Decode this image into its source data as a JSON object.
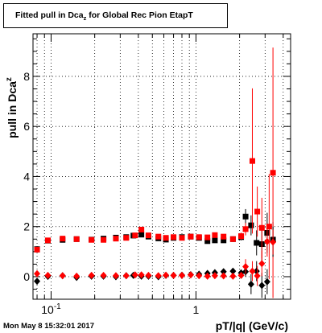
{
  "title": {
    "prefix": "Fitted pull in Dca",
    "subscript": "z",
    "suffix": " for Global Rec Pion EtapT"
  },
  "timestamp": "Mon May  8 15:32:01 2017",
  "chart_data": {
    "type": "scatter",
    "title": "Fitted pull in Dcaz for Global Rec Pion EtapT",
    "xlabel": "pT/|q| (GeV/c)",
    "ylabel": "pull in Dcaz",
    "xscale": "log",
    "xlim": [
      0.075,
      4.5
    ],
    "ylim": [
      -0.9,
      9.7
    ],
    "x_tick_labels": [
      "10^-1",
      "1"
    ],
    "y_tick_labels": [
      "0",
      "2",
      "4",
      "6",
      "8"
    ],
    "y_ticks": [
      0,
      2,
      4,
      6,
      8
    ],
    "grid": true,
    "colors": {
      "black": "#000000",
      "red": "#ff0000"
    },
    "series": [
      {
        "color": "#000000",
        "marker": "square",
        "points": [
          [
            0.08,
            1.1,
            0.1
          ],
          [
            0.095,
            1.44,
            0.05
          ],
          [
            0.12,
            1.47,
            0.04
          ],
          [
            0.15,
            1.5,
            0.04
          ],
          [
            0.19,
            1.48,
            0.04
          ],
          [
            0.23,
            1.52,
            0.04
          ],
          [
            0.28,
            1.56,
            0.05
          ],
          [
            0.33,
            1.58,
            0.05
          ],
          [
            0.37,
            1.64,
            0.06
          ],
          [
            0.42,
            1.68,
            0.06
          ],
          [
            0.47,
            1.6,
            0.06
          ],
          [
            0.55,
            1.53,
            0.06
          ],
          [
            0.62,
            1.48,
            0.07
          ],
          [
            0.7,
            1.55,
            0.07
          ],
          [
            0.8,
            1.58,
            0.07
          ],
          [
            0.92,
            1.6,
            0.07
          ],
          [
            1.05,
            1.55,
            0.08
          ],
          [
            1.2,
            1.42,
            0.08
          ],
          [
            1.35,
            1.45,
            0.09
          ],
          [
            1.55,
            1.45,
            0.1
          ],
          [
            1.8,
            1.5,
            0.11
          ],
          [
            2.05,
            1.58,
            0.13
          ],
          [
            2.2,
            2.4,
            0.3
          ],
          [
            2.4,
            2.05,
            0.4
          ],
          [
            2.62,
            1.35,
            0.5
          ],
          [
            2.85,
            1.3,
            0.7
          ],
          [
            3.1,
            1.75,
            0.8
          ],
          [
            3.4,
            1.48,
            0.7
          ]
        ]
      },
      {
        "color": "#ff0000",
        "marker": "square",
        "points": [
          [
            0.08,
            1.08,
            0.1
          ],
          [
            0.095,
            1.45,
            0.05
          ],
          [
            0.12,
            1.52,
            0.04
          ],
          [
            0.15,
            1.5,
            0.04
          ],
          [
            0.19,
            1.47,
            0.04
          ],
          [
            0.23,
            1.47,
            0.04
          ],
          [
            0.28,
            1.52,
            0.05
          ],
          [
            0.33,
            1.55,
            0.05
          ],
          [
            0.38,
            1.65,
            0.06
          ],
          [
            0.42,
            1.88,
            0.06
          ],
          [
            0.47,
            1.65,
            0.06
          ],
          [
            0.55,
            1.6,
            0.06
          ],
          [
            0.62,
            1.55,
            0.07
          ],
          [
            0.7,
            1.58,
            0.07
          ],
          [
            0.8,
            1.55,
            0.07
          ],
          [
            0.92,
            1.6,
            0.07
          ],
          [
            1.05,
            1.58,
            0.08
          ],
          [
            1.2,
            1.57,
            0.08
          ],
          [
            1.35,
            1.66,
            0.09
          ],
          [
            1.55,
            1.6,
            0.1
          ],
          [
            1.8,
            1.5,
            0.11
          ],
          [
            2.05,
            1.62,
            0.14
          ],
          [
            2.2,
            1.9,
            0.25
          ],
          [
            2.45,
            4.62,
            2.9
          ],
          [
            2.65,
            2.6,
            1.0
          ],
          [
            2.85,
            1.95,
            1.2
          ],
          [
            3.2,
            2.0,
            2.1
          ],
          [
            3.4,
            4.15,
            5.0
          ]
        ]
      },
      {
        "color": "#000000",
        "marker": "diamond",
        "points": [
          [
            0.08,
            -0.18,
            0.05
          ],
          [
            0.095,
            0.01,
            0.03
          ],
          [
            0.12,
            0.04,
            0.03
          ],
          [
            0.15,
            -0.03,
            0.03
          ],
          [
            0.19,
            0.02,
            0.03
          ],
          [
            0.23,
            0.02,
            0.03
          ],
          [
            0.28,
            0.0,
            0.03
          ],
          [
            0.33,
            0.04,
            0.03
          ],
          [
            0.37,
            0.05,
            0.03
          ],
          [
            0.42,
            0.02,
            0.03
          ],
          [
            0.47,
            0.02,
            0.03
          ],
          [
            0.55,
            0.0,
            0.04
          ],
          [
            0.62,
            0.05,
            0.04
          ],
          [
            0.7,
            0.05,
            0.04
          ],
          [
            0.8,
            0.06,
            0.04
          ],
          [
            0.92,
            0.08,
            0.04
          ],
          [
            1.05,
            0.1,
            0.04
          ],
          [
            1.2,
            0.13,
            0.05
          ],
          [
            1.35,
            0.16,
            0.05
          ],
          [
            1.55,
            0.2,
            0.06
          ],
          [
            1.8,
            0.22,
            0.07
          ],
          [
            2.05,
            0.15,
            0.08
          ],
          [
            2.2,
            0.2,
            0.2
          ],
          [
            2.4,
            -0.3,
            0.4
          ],
          [
            2.62,
            0.22,
            0.4
          ],
          [
            2.85,
            -0.35,
            0.5
          ],
          [
            3.1,
            -0.2,
            0.5
          ],
          [
            3.4,
            1.4,
            0.6
          ]
        ]
      },
      {
        "color": "#ff0000",
        "marker": "diamond",
        "points": [
          [
            0.08,
            0.12,
            0.05
          ],
          [
            0.095,
            0.05,
            0.03
          ],
          [
            0.12,
            0.04,
            0.03
          ],
          [
            0.15,
            0.02,
            0.03
          ],
          [
            0.19,
            0.05,
            0.03
          ],
          [
            0.23,
            0.05,
            0.03
          ],
          [
            0.28,
            0.04,
            0.03
          ],
          [
            0.33,
            0.04,
            0.03
          ],
          [
            0.38,
            0.07,
            0.03
          ],
          [
            0.42,
            0.07,
            0.03
          ],
          [
            0.47,
            0.05,
            0.03
          ],
          [
            0.55,
            0.04,
            0.04
          ],
          [
            0.62,
            0.06,
            0.04
          ],
          [
            0.7,
            0.05,
            0.04
          ],
          [
            0.8,
            0.05,
            0.04
          ],
          [
            0.92,
            0.07,
            0.04
          ],
          [
            1.05,
            0.04,
            0.04
          ],
          [
            1.2,
            0.02,
            0.05
          ],
          [
            1.35,
            0.04,
            0.05
          ],
          [
            1.55,
            0.03,
            0.06
          ],
          [
            1.8,
            0.02,
            0.07
          ],
          [
            2.05,
            0.05,
            0.08
          ],
          [
            2.2,
            0.4,
            0.3
          ],
          [
            2.45,
            0.22,
            0.4
          ],
          [
            2.65,
            0.03,
            0.4
          ],
          [
            2.85,
            0.52,
            0.5
          ],
          [
            3.1,
            1.4,
            0.6
          ],
          [
            3.4,
            1.38,
            0.5
          ]
        ]
      }
    ]
  }
}
